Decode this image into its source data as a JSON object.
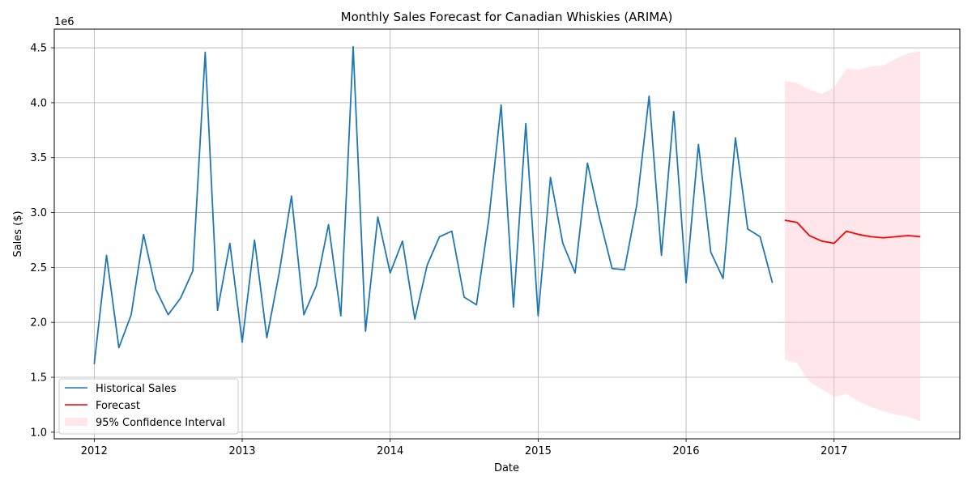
{
  "chart_data": {
    "type": "line",
    "title": "Monthly Sales Forecast for Canadian Whiskies (ARIMA)",
    "xlabel": "Date",
    "ylabel": "Sales ($)",
    "y_scale_label": "1e6",
    "xlim": [
      2011.73,
      2017.85
    ],
    "ylim": [
      0.94,
      4.67
    ],
    "grid": true,
    "legend_position": "lower-left",
    "x_ticks": [
      2012,
      2013,
      2014,
      2015,
      2016,
      2017
    ],
    "x_tick_labels": [
      "2012",
      "2013",
      "2014",
      "2015",
      "2016",
      "2017"
    ],
    "y_ticks": [
      1.0,
      1.5,
      2.0,
      2.5,
      3.0,
      3.5,
      4.0,
      4.5
    ],
    "y_tick_labels": [
      "1.0",
      "1.5",
      "2.0",
      "2.5",
      "3.0",
      "3.5",
      "4.0",
      "4.5"
    ],
    "legend": [
      "Historical Sales",
      "Forecast",
      "95% Confidence Interval"
    ],
    "colors": {
      "historical": "#1f77b4",
      "forecast": "#ff0000",
      "ci": "#ffc0cb"
    },
    "series": [
      {
        "name": "Historical Sales",
        "x": [
          "2012-01",
          "2012-02",
          "2012-03",
          "2012-04",
          "2012-05",
          "2012-06",
          "2012-07",
          "2012-08",
          "2012-09",
          "2012-10",
          "2012-11",
          "2012-12",
          "2013-01",
          "2013-02",
          "2013-03",
          "2013-04",
          "2013-05",
          "2013-06",
          "2013-07",
          "2013-08",
          "2013-09",
          "2013-10",
          "2013-11",
          "2013-12",
          "2014-01",
          "2014-02",
          "2014-03",
          "2014-04",
          "2014-05",
          "2014-06",
          "2014-07",
          "2014-08",
          "2014-09",
          "2014-10",
          "2014-11",
          "2014-12",
          "2015-01",
          "2015-02",
          "2015-03",
          "2015-04",
          "2015-05",
          "2015-06",
          "2015-07",
          "2015-08",
          "2015-09",
          "2015-10",
          "2015-11",
          "2015-12",
          "2016-01",
          "2016-02",
          "2016-03",
          "2016-04",
          "2016-05",
          "2016-06",
          "2016-07",
          "2016-08"
        ],
        "values": [
          1.62,
          2.61,
          1.77,
          2.07,
          2.8,
          2.3,
          2.07,
          2.22,
          2.47,
          4.46,
          2.11,
          2.72,
          1.82,
          2.75,
          1.86,
          2.45,
          3.15,
          2.07,
          2.33,
          2.89,
          2.06,
          4.51,
          1.92,
          2.96,
          2.45,
          2.74,
          2.03,
          2.52,
          2.78,
          2.83,
          2.23,
          2.16,
          2.94,
          3.98,
          2.14,
          3.81,
          2.06,
          3.32,
          2.72,
          2.45,
          3.45,
          2.94,
          2.49,
          2.48,
          3.07,
          4.06,
          2.61,
          3.92,
          2.36,
          3.62,
          2.64,
          2.4,
          3.68,
          2.85,
          2.78,
          2.36
        ]
      },
      {
        "name": "Forecast",
        "x": [
          "2016-09",
          "2016-10",
          "2016-11",
          "2016-12",
          "2017-01",
          "2017-02",
          "2017-03",
          "2017-04",
          "2017-05",
          "2017-06",
          "2017-07",
          "2017-08"
        ],
        "values": [
          2.93,
          2.91,
          2.79,
          2.74,
          2.72,
          2.83,
          2.8,
          2.78,
          2.77,
          2.78,
          2.79,
          2.78
        ]
      },
      {
        "name": "95% Confidence Interval",
        "x": [
          "2016-09",
          "2016-10",
          "2016-11",
          "2016-12",
          "2017-01",
          "2017-02",
          "2017-03",
          "2017-04",
          "2017-05",
          "2017-06",
          "2017-07",
          "2017-08"
        ],
        "lower": [
          1.66,
          1.63,
          1.46,
          1.39,
          1.32,
          1.35,
          1.28,
          1.23,
          1.19,
          1.16,
          1.14,
          1.1
        ],
        "upper": [
          4.2,
          4.18,
          4.12,
          4.08,
          4.14,
          4.31,
          4.3,
          4.33,
          4.34,
          4.4,
          4.45,
          4.47
        ]
      }
    ]
  }
}
